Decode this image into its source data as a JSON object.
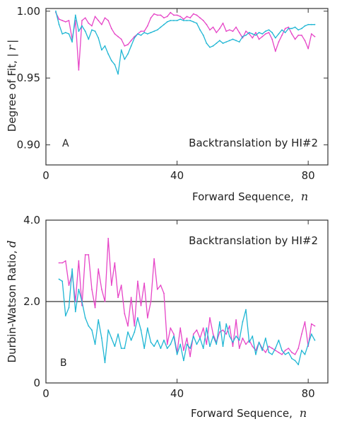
{
  "chart_data": [
    {
      "panel_label": "A",
      "type": "line",
      "annotation": "Backtranslation by HI#2",
      "xlabel": "Forward Sequence,",
      "xlabel_var": "n",
      "ylabel": "Degree of Fit, |",
      "ylabel_var": "r",
      "ylabel_suffix": "|",
      "xlim": [
        0,
        86
      ],
      "ylim": [
        0.885,
        1.002
      ],
      "xticks": [
        0,
        40,
        80
      ],
      "yticks": [
        0.9,
        0.95,
        1.0
      ],
      "ytick_labels": [
        "0.90",
        "0.95",
        "1.00"
      ],
      "grid": false,
      "series": [
        {
          "color": "#e645c7",
          "x": [
            3,
            4,
            5,
            6,
            7,
            8,
            9,
            10,
            11,
            12,
            13,
            14,
            15,
            16,
            17,
            18,
            19,
            20,
            21,
            22,
            23,
            24,
            25,
            26,
            27,
            28,
            29,
            30,
            31,
            32,
            33,
            34,
            35,
            36,
            37,
            38,
            39,
            40,
            41,
            42,
            43,
            44,
            45,
            46,
            47,
            48,
            49,
            50,
            51,
            52,
            53,
            54,
            55,
            56,
            57,
            58,
            59,
            60,
            61,
            62,
            63,
            64,
            65,
            66,
            67,
            68,
            69,
            70,
            71,
            72,
            73,
            74,
            75,
            76,
            77,
            78,
            79,
            80,
            81,
            82
          ],
          "y": [
            0.999,
            0.994,
            0.993,
            0.992,
            0.993,
            0.979,
            0.993,
            0.956,
            0.993,
            0.995,
            0.991,
            0.989,
            0.996,
            0.993,
            0.99,
            0.995,
            0.993,
            0.987,
            0.983,
            0.981,
            0.979,
            0.974,
            0.975,
            0.978,
            0.981,
            0.983,
            0.985,
            0.985,
            0.989,
            0.995,
            0.998,
            0.997,
            0.997,
            0.995,
            0.996,
            0.999,
            0.997,
            0.997,
            0.996,
            0.994,
            0.996,
            0.995,
            0.998,
            0.997,
            0.995,
            0.993,
            0.99,
            0.986,
            0.988,
            0.984,
            0.987,
            0.991,
            0.985,
            0.986,
            0.985,
            0.988,
            0.984,
            0.98,
            0.985,
            0.983,
            0.98,
            0.984,
            0.979,
            0.981,
            0.983,
            0.984,
            0.979,
            0.97,
            0.977,
            0.982,
            0.987,
            0.988,
            0.983,
            0.979,
            0.982,
            0.982,
            0.978,
            0.972,
            0.983,
            0.981
          ]
        },
        {
          "color": "#1fb6d4",
          "x": [
            3,
            4,
            5,
            6,
            7,
            8,
            9,
            10,
            11,
            12,
            13,
            14,
            15,
            16,
            17,
            18,
            19,
            20,
            21,
            22,
            23,
            24,
            25,
            26,
            27,
            28,
            29,
            30,
            31,
            32,
            33,
            34,
            35,
            36,
            37,
            38,
            39,
            40,
            41,
            42,
            43,
            44,
            45,
            46,
            47,
            48,
            49,
            50,
            51,
            52,
            53,
            54,
            55,
            56,
            57,
            58,
            59,
            60,
            61,
            62,
            63,
            64,
            65,
            66,
            67,
            68,
            69,
            70,
            71,
            72,
            73,
            74,
            75,
            76,
            77,
            78,
            79,
            80,
            81,
            82
          ],
          "y": [
            1.0,
            0.99,
            0.983,
            0.984,
            0.983,
            0.977,
            0.997,
            0.985,
            0.989,
            0.985,
            0.979,
            0.986,
            0.985,
            0.98,
            0.971,
            0.974,
            0.968,
            0.963,
            0.96,
            0.953,
            0.971,
            0.964,
            0.968,
            0.974,
            0.98,
            0.983,
            0.982,
            0.984,
            0.983,
            0.984,
            0.985,
            0.986,
            0.988,
            0.99,
            0.992,
            0.993,
            0.993,
            0.993,
            0.994,
            0.993,
            0.993,
            0.993,
            0.992,
            0.991,
            0.986,
            0.982,
            0.976,
            0.973,
            0.974,
            0.976,
            0.978,
            0.976,
            0.977,
            0.978,
            0.979,
            0.978,
            0.977,
            0.981,
            0.982,
            0.984,
            0.983,
            0.982,
            0.984,
            0.983,
            0.985,
            0.986,
            0.984,
            0.98,
            0.983,
            0.986,
            0.984,
            0.987,
            0.987,
            0.988,
            0.986,
            0.987,
            0.989,
            0.99,
            0.99,
            0.99
          ]
        }
      ]
    },
    {
      "panel_label": "B",
      "type": "line",
      "annotation": "Backtranslation by HI#2",
      "xlabel": "Forward Sequence,",
      "xlabel_var": "n",
      "ylabel": "Durbin-Watson Ratio,",
      "ylabel_var": "d",
      "ylabel_suffix": "",
      "xlim": [
        0,
        86
      ],
      "ylim": [
        0,
        4.0
      ],
      "xticks": [
        0,
        40,
        80
      ],
      "yticks": [
        0,
        2.0,
        4.0
      ],
      "ytick_labels": [
        "0",
        "2.0",
        "4.0"
      ],
      "reference_line": 2.0,
      "grid": false,
      "series": [
        {
          "color": "#e645c7",
          "x": [
            4,
            5,
            6,
            7,
            8,
            9,
            10,
            11,
            12,
            13,
            14,
            15,
            16,
            17,
            18,
            19,
            20,
            21,
            22,
            23,
            24,
            25,
            26,
            27,
            28,
            29,
            30,
            31,
            32,
            33,
            34,
            35,
            36,
            37,
            38,
            39,
            40,
            41,
            42,
            43,
            44,
            45,
            46,
            47,
            48,
            49,
            50,
            51,
            52,
            53,
            54,
            55,
            56,
            57,
            58,
            59,
            60,
            61,
            62,
            63,
            64,
            65,
            66,
            67,
            68,
            69,
            70,
            71,
            72,
            73,
            74,
            75,
            76,
            77,
            78,
            79,
            80,
            81,
            82
          ],
          "y": [
            2.95,
            2.95,
            3.0,
            2.4,
            2.7,
            2.0,
            3.0,
            1.9,
            3.15,
            3.15,
            2.3,
            1.85,
            2.8,
            2.3,
            2.0,
            3.55,
            2.4,
            2.95,
            2.1,
            2.4,
            1.7,
            1.4,
            2.1,
            1.4,
            2.5,
            1.9,
            2.45,
            1.6,
            2.0,
            3.05,
            2.3,
            2.4,
            2.2,
            0.95,
            1.35,
            1.2,
            0.75,
            1.35,
            0.8,
            1.1,
            0.65,
            1.2,
            1.3,
            1.1,
            1.35,
            0.95,
            1.6,
            1.2,
            1.0,
            1.25,
            1.3,
            1.2,
            1.4,
            0.9,
            1.55,
            0.85,
            1.1,
            0.95,
            1.05,
            0.9,
            0.8,
            1.0,
            0.85,
            0.75,
            0.9,
            0.85,
            0.8,
            0.75,
            0.7,
            0.8,
            0.85,
            0.75,
            0.7,
            0.85,
            1.2,
            1.5,
            0.9,
            1.45,
            1.4
          ]
        },
        {
          "color": "#1fb6d4",
          "x": [
            4,
            5,
            6,
            7,
            8,
            9,
            10,
            11,
            12,
            13,
            14,
            15,
            16,
            17,
            18,
            19,
            20,
            21,
            22,
            23,
            24,
            25,
            26,
            27,
            28,
            29,
            30,
            31,
            32,
            33,
            34,
            35,
            36,
            37,
            38,
            39,
            40,
            41,
            42,
            43,
            44,
            45,
            46,
            47,
            48,
            49,
            50,
            51,
            52,
            53,
            54,
            55,
            56,
            57,
            58,
            59,
            60,
            61,
            62,
            63,
            64,
            65,
            66,
            67,
            68,
            69,
            70,
            71,
            72,
            73,
            74,
            75,
            76,
            77,
            78,
            79,
            80,
            81,
            82
          ],
          "y": [
            2.55,
            2.5,
            1.65,
            1.85,
            2.8,
            1.75,
            2.3,
            2.0,
            1.6,
            1.4,
            1.3,
            0.95,
            1.55,
            1.1,
            0.5,
            1.3,
            1.1,
            0.9,
            1.2,
            0.85,
            0.85,
            1.25,
            1.05,
            1.25,
            1.6,
            1.3,
            0.85,
            1.35,
            1.0,
            0.9,
            1.05,
            0.85,
            1.05,
            0.85,
            0.95,
            1.15,
            0.7,
            0.95,
            0.55,
            0.95,
            0.85,
            1.15,
            0.95,
            1.1,
            0.85,
            1.35,
            0.9,
            1.15,
            0.95,
            1.5,
            0.9,
            1.45,
            1.15,
            1.0,
            1.15,
            1.05,
            1.5,
            1.8,
            1.0,
            1.15,
            0.7,
            1.0,
            0.8,
            1.1,
            0.75,
            0.7,
            0.85,
            1.05,
            0.8,
            0.7,
            0.75,
            0.6,
            0.55,
            0.45,
            0.8,
            0.7,
            0.95,
            1.2,
            1.05
          ]
        }
      ]
    }
  ]
}
